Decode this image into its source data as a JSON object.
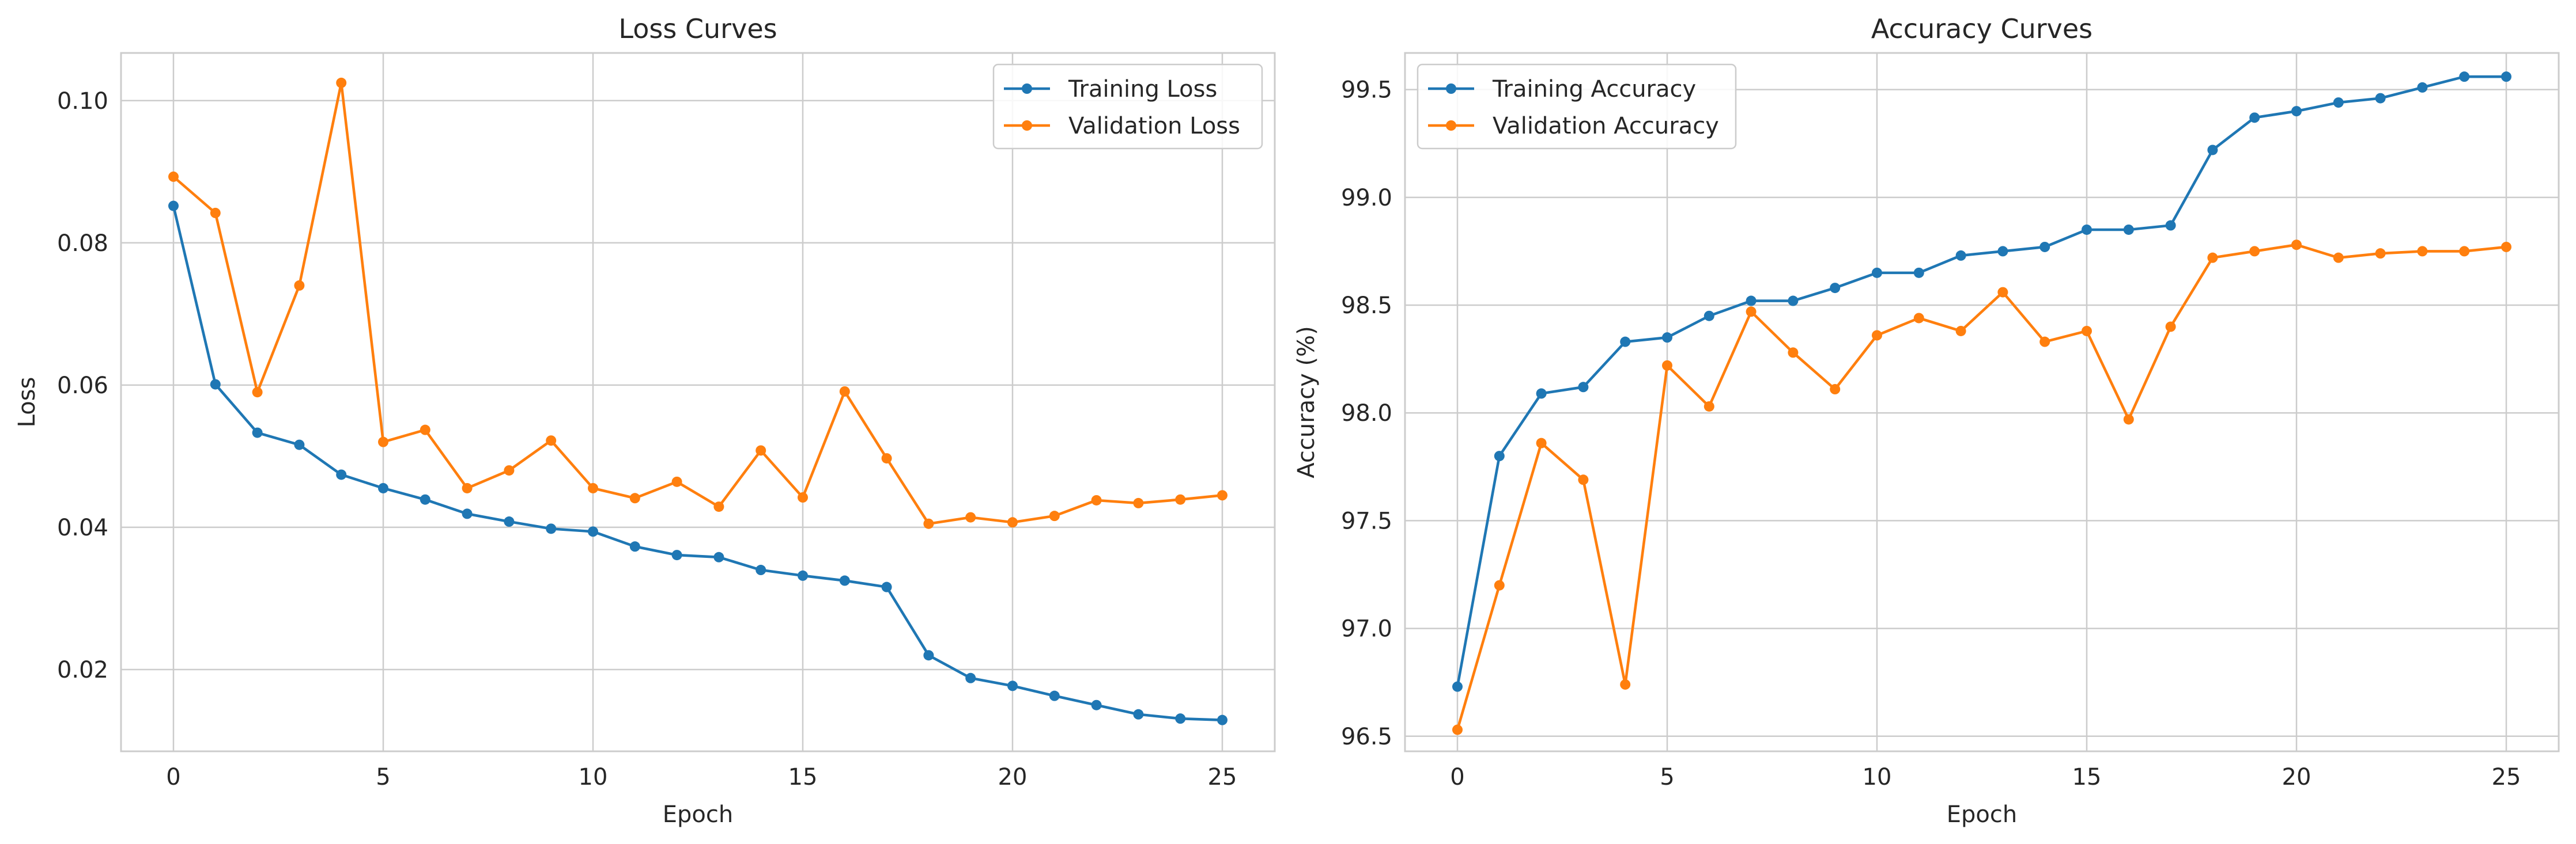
{
  "colors": {
    "training": "#1f77b4",
    "validation": "#ff7f0e"
  },
  "chart_data": [
    {
      "type": "line",
      "title": "Loss Curves",
      "xlabel": "Epoch",
      "ylabel": "Loss",
      "xlim": [
        -1.25,
        26.25
      ],
      "ylim": [
        0.0085,
        0.1067
      ],
      "xticks": [
        0,
        5,
        10,
        15,
        20,
        25
      ],
      "xtick_labels": [
        "0",
        "5",
        "10",
        "15",
        "20",
        "25"
      ],
      "yticks": [
        0.02,
        0.04,
        0.06,
        0.08,
        0.1
      ],
      "ytick_labels": [
        "0.02",
        "0.04",
        "0.06",
        "0.08",
        "0.10"
      ],
      "grid": true,
      "legend_position": "upper right",
      "x": [
        0,
        1,
        2,
        3,
        4,
        5,
        6,
        7,
        8,
        9,
        10,
        11,
        12,
        13,
        14,
        15,
        16,
        17,
        18,
        19,
        20,
        21,
        22,
        23,
        24,
        25
      ],
      "series": [
        {
          "name": "Training Loss",
          "color_key": "training",
          "marker": "circle",
          "values": [
            0.0852,
            0.0601,
            0.0533,
            0.0516,
            0.0474,
            0.0455,
            0.0439,
            0.0419,
            0.0408,
            0.0398,
            0.0394,
            0.0373,
            0.0361,
            0.0358,
            0.034,
            0.0332,
            0.0325,
            0.0316,
            0.022,
            0.0188,
            0.0177,
            0.0163,
            0.015,
            0.0137,
            0.0131,
            0.0129
          ]
        },
        {
          "name": "Validation Loss",
          "color_key": "validation",
          "marker": "circle",
          "values": [
            0.0893,
            0.0842,
            0.059,
            0.074,
            0.1025,
            0.052,
            0.0537,
            0.0455,
            0.048,
            0.0522,
            0.0455,
            0.0441,
            0.0464,
            0.0429,
            0.0508,
            0.0442,
            0.0591,
            0.0497,
            0.0405,
            0.0414,
            0.0407,
            0.0416,
            0.0438,
            0.0434,
            0.0439,
            0.0445
          ]
        }
      ]
    },
    {
      "type": "line",
      "title": "Accuracy Curves",
      "xlabel": "Epoch",
      "ylabel": "Accuracy (%)",
      "xlim": [
        -1.25,
        26.25
      ],
      "ylim": [
        96.43,
        99.67
      ],
      "xticks": [
        0,
        5,
        10,
        15,
        20,
        25
      ],
      "xtick_labels": [
        "0",
        "5",
        "10",
        "15",
        "20",
        "25"
      ],
      "yticks": [
        96.5,
        97.0,
        97.5,
        98.0,
        98.5,
        99.0,
        99.5
      ],
      "ytick_labels": [
        "96.5",
        "97.0",
        "97.5",
        "98.0",
        "98.5",
        "99.0",
        "99.5"
      ],
      "grid": true,
      "legend_position": "upper left",
      "x": [
        0,
        1,
        2,
        3,
        4,
        5,
        6,
        7,
        8,
        9,
        10,
        11,
        12,
        13,
        14,
        15,
        16,
        17,
        18,
        19,
        20,
        21,
        22,
        23,
        24,
        25
      ],
      "series": [
        {
          "name": "Training Accuracy",
          "color_key": "training",
          "marker": "circle",
          "values": [
            96.73,
            97.8,
            98.09,
            98.12,
            98.33,
            98.35,
            98.45,
            98.52,
            98.52,
            98.58,
            98.65,
            98.65,
            98.73,
            98.75,
            98.77,
            98.85,
            98.85,
            98.87,
            99.22,
            99.37,
            99.4,
            99.44,
            99.46,
            99.51,
            99.56,
            99.56
          ]
        },
        {
          "name": "Validation Accuracy",
          "color_key": "validation",
          "marker": "circle",
          "values": [
            96.53,
            97.2,
            97.86,
            97.69,
            96.74,
            98.22,
            98.03,
            98.47,
            98.28,
            98.11,
            98.36,
            98.44,
            98.38,
            98.56,
            98.33,
            98.38,
            97.97,
            98.4,
            98.72,
            98.75,
            98.78,
            98.72,
            98.74,
            98.75,
            98.75,
            98.77
          ]
        }
      ]
    }
  ]
}
